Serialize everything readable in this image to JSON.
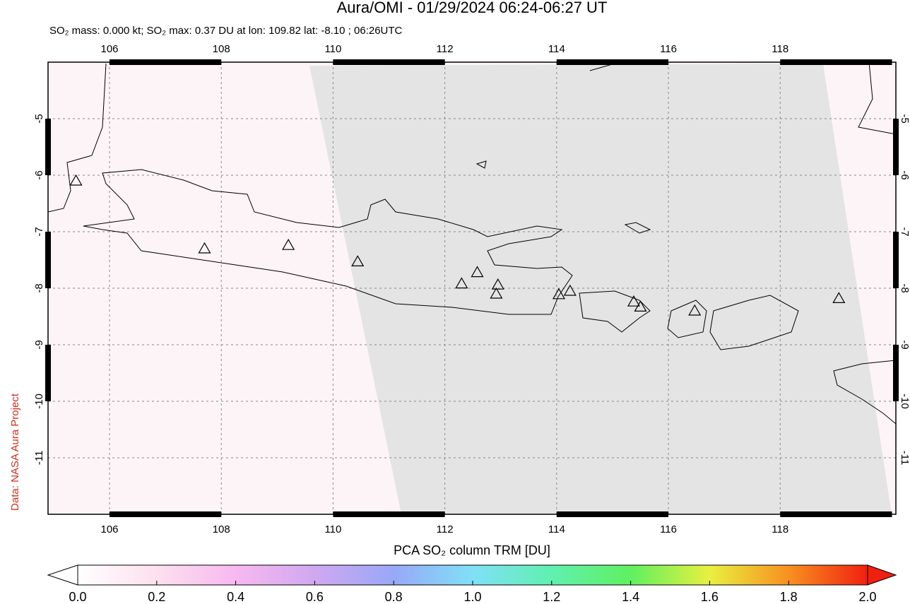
{
  "title": "Aura/OMI - 01/29/2024 06:24-06:27 UT",
  "subtitle": "SO₂ mass: 0.000 kt; SO₂ max: 0.37 DU at lon: 109.82 lat: -8.10 ; 06:26UTC",
  "credit": "Data: NASA Aura Project",
  "map": {
    "xlim": [
      104.9,
      120.07
    ],
    "ylim": [
      -12.0,
      -4.0
    ],
    "xticks": [
      106,
      108,
      110,
      112,
      114,
      116,
      118
    ],
    "yticks": [
      -5,
      -6,
      -7,
      -8,
      -9,
      -10,
      -11
    ],
    "grid": true,
    "volcanoes": [
      {
        "lon": 105.4,
        "lat": -6.1
      },
      {
        "lon": 107.7,
        "lat": -7.3
      },
      {
        "lon": 109.2,
        "lat": -7.24
      },
      {
        "lon": 110.44,
        "lat": -7.53
      },
      {
        "lon": 112.3,
        "lat": -7.92
      },
      {
        "lon": 112.58,
        "lat": -7.72
      },
      {
        "lon": 112.95,
        "lat": -7.94
      },
      {
        "lon": 112.92,
        "lat": -8.1
      },
      {
        "lon": 114.04,
        "lat": -8.11
      },
      {
        "lon": 114.24,
        "lat": -8.05
      },
      {
        "lon": 115.38,
        "lat": -8.24
      },
      {
        "lon": 115.5,
        "lat": -8.33
      },
      {
        "lon": 116.47,
        "lat": -8.4
      },
      {
        "lon": 119.05,
        "lat": -8.18
      }
    ]
  },
  "colorbar": {
    "label": "PCA SO₂ column TRM [DU]",
    "lim": [
      0,
      2.0
    ],
    "ticks": [
      {
        "value": 0,
        "label": "0.0"
      },
      {
        "value": 0.2,
        "label": "0.2"
      },
      {
        "value": 0.4,
        "label": "0.4"
      },
      {
        "value": 0.6,
        "label": "0.6"
      },
      {
        "value": 0.8,
        "label": "0.8"
      },
      {
        "value": 1.0,
        "label": "1.0"
      },
      {
        "value": 1.2,
        "label": "1.2"
      },
      {
        "value": 1.4,
        "label": "1.4"
      },
      {
        "value": 1.6,
        "label": "1.6"
      },
      {
        "value": 1.8,
        "label": "1.8"
      },
      {
        "value": 2.0,
        "label": "2.0"
      }
    ]
  }
}
